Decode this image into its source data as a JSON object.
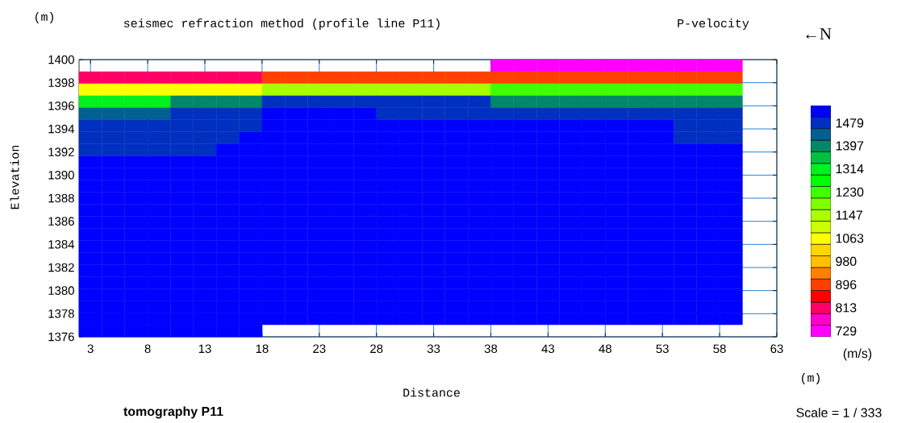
{
  "chart_data": {
    "type": "heatmap",
    "title": "seismec refraction method (profile line P11)",
    "xlabel": "Distance",
    "ylabel": "Elevation",
    "clabel": "(m/s)",
    "annotations": [
      "(m)",
      "P-velocity",
      "←N",
      "(m)",
      "tomography P11",
      "Scale = 1 / 333"
    ],
    "x": [
      3,
      5,
      7,
      9,
      11,
      13,
      15,
      17,
      19,
      21,
      23,
      25,
      27,
      29,
      31,
      33,
      35,
      37,
      39,
      41,
      43,
      45,
      47,
      49,
      51,
      53,
      55,
      57,
      59
    ],
    "xlim": [
      2,
      63
    ],
    "xticks": [
      3,
      8,
      13,
      18,
      23,
      28,
      33,
      38,
      43,
      48,
      53,
      58,
      63
    ],
    "ylim": [
      1376,
      1400
    ],
    "yticks": [
      1376,
      1378,
      1380,
      1382,
      1384,
      1386,
      1388,
      1390,
      1392,
      1394,
      1396,
      1398,
      1400
    ],
    "grid": true,
    "clim": [
      708,
      1542
    ],
    "cticks": [
      729,
      813,
      896,
      980,
      1063,
      1147,
      1230,
      1314,
      1397,
      1479
    ],
    "colors": [
      "#ff00ff",
      "#ff00cc",
      "#ff0066",
      "#ff0000",
      "#ff4000",
      "#ff8000",
      "#ffc000",
      "#ffd700",
      "#ffff00",
      "#ccff00",
      "#a8ff00",
      "#80ff00",
      "#40ff00",
      "#00ff00",
      "#00f020",
      "#00c040",
      "#008868",
      "#006090",
      "#0030c0",
      "#0000ff"
    ],
    "cells": [
      [
        null,
        null,
        null,
        null,
        null,
        null,
        null,
        null,
        null,
        null,
        null,
        null,
        null,
        null,
        null,
        null,
        null,
        null,
        740,
        740,
        740,
        740,
        740,
        740,
        740,
        740,
        740,
        740,
        740
      ],
      [
        813,
        813,
        813,
        813,
        813,
        813,
        813,
        813,
        896,
        896,
        896,
        896,
        896,
        896,
        896,
        896,
        896,
        896,
        896,
        896,
        896,
        896,
        896,
        896,
        896,
        896,
        896,
        896,
        896
      ],
      [
        1063,
        1063,
        1063,
        1063,
        1063,
        1063,
        1063,
        1063,
        1147,
        1147,
        1147,
        1147,
        1147,
        1147,
        1147,
        1147,
        1147,
        1147,
        1230,
        1230,
        1230,
        1230,
        1230,
        1230,
        1230,
        1230,
        1230,
        1230,
        1230
      ],
      [
        1314,
        1314,
        1314,
        1314,
        1397,
        1397,
        1397,
        1397,
        1479,
        1479,
        1479,
        1479,
        1479,
        1479,
        1479,
        1479,
        1479,
        1479,
        1397,
        1397,
        1397,
        1397,
        1397,
        1397,
        1397,
        1397,
        1397,
        1397,
        1397
      ],
      [
        1440,
        1440,
        1440,
        1440,
        1479,
        1479,
        1479,
        1479,
        1520,
        1520,
        1520,
        1520,
        1520,
        1479,
        1479,
        1479,
        1479,
        1479,
        1479,
        1479,
        1479,
        1479,
        1479,
        1479,
        1479,
        1479,
        1479,
        1479,
        1479
      ],
      [
        1479,
        1479,
        1479,
        1479,
        1479,
        1479,
        1479,
        1479,
        1520,
        1520,
        1520,
        1520,
        1520,
        1520,
        1520,
        1520,
        1520,
        1520,
        1520,
        1520,
        1520,
        1520,
        1520,
        1520,
        1520,
        1520,
        1479,
        1479,
        1479
      ],
      [
        1479,
        1479,
        1479,
        1479,
        1479,
        1479,
        1479,
        1520,
        1520,
        1520,
        1520,
        1520,
        1520,
        1520,
        1520,
        1520,
        1520,
        1520,
        1520,
        1520,
        1520,
        1520,
        1520,
        1520,
        1520,
        1520,
        1479,
        1479,
        1479
      ],
      [
        1479,
        1479,
        1479,
        1479,
        1479,
        1479,
        1520,
        1520,
        1520,
        1520,
        1520,
        1520,
        1520,
        1520,
        1520,
        1520,
        1520,
        1520,
        1520,
        1520,
        1520,
        1520,
        1520,
        1520,
        1520,
        1520,
        1520,
        1520,
        1520
      ],
      [
        1520,
        1520,
        1520,
        1520,
        1520,
        1520,
        1520,
        1520,
        1520,
        1520,
        1520,
        1520,
        1520,
        1520,
        1520,
        1520,
        1520,
        1520,
        1520,
        1520,
        1520,
        1520,
        1520,
        1520,
        1520,
        1520,
        1520,
        1520,
        1520
      ],
      [
        1520,
        1520,
        1520,
        1520,
        1520,
        1520,
        1520,
        1520,
        1520,
        1520,
        1520,
        1520,
        1520,
        1520,
        1520,
        1520,
        1520,
        1520,
        1520,
        1520,
        1520,
        1520,
        1520,
        1520,
        1520,
        1520,
        1520,
        1520,
        1520
      ],
      [
        1520,
        1520,
        1520,
        1520,
        1520,
        1520,
        1520,
        1520,
        1520,
        1520,
        1520,
        1520,
        1520,
        1520,
        1520,
        1520,
        1520,
        1520,
        1520,
        1520,
        1520,
        1520,
        1520,
        1520,
        1520,
        1520,
        1520,
        1520,
        1520
      ],
      [
        1520,
        1520,
        1520,
        1520,
        1520,
        1520,
        1520,
        1520,
        1520,
        1520,
        1520,
        1520,
        1520,
        1520,
        1520,
        1520,
        1520,
        1520,
        1520,
        1520,
        1520,
        1520,
        1520,
        1520,
        1520,
        1520,
        1520,
        1520,
        1520
      ],
      [
        1520,
        1520,
        1520,
        1520,
        1520,
        1520,
        1520,
        1520,
        1520,
        1520,
        1520,
        1520,
        1520,
        1520,
        1520,
        1520,
        1520,
        1520,
        1520,
        1520,
        1520,
        1520,
        1520,
        1520,
        1520,
        1520,
        1520,
        1520,
        1520
      ],
      [
        1520,
        1520,
        1520,
        1520,
        1520,
        1520,
        1520,
        1520,
        1520,
        1520,
        1520,
        1520,
        1520,
        1520,
        1520,
        1520,
        1520,
        1520,
        1520,
        1520,
        1520,
        1520,
        1520,
        1520,
        1520,
        1520,
        1520,
        1520,
        1520
      ],
      [
        1520,
        1520,
        1520,
        1520,
        1520,
        1520,
        1520,
        1520,
        1520,
        1520,
        1520,
        1520,
        1520,
        1520,
        1520,
        1520,
        1520,
        1520,
        1520,
        1520,
        1520,
        1520,
        1520,
        1520,
        1520,
        1520,
        1520,
        1520,
        1520
      ],
      [
        1520,
        1520,
        1520,
        1520,
        1520,
        1520,
        1520,
        1520,
        1520,
        1520,
        1520,
        1520,
        1520,
        1520,
        1520,
        1520,
        1520,
        1520,
        1520,
        1520,
        1520,
        1520,
        1520,
        1520,
        1520,
        1520,
        1520,
        1520,
        1520
      ],
      [
        1520,
        1520,
        1520,
        1520,
        1520,
        1520,
        1520,
        1520,
        1520,
        1520,
        1520,
        1520,
        1520,
        1520,
        1520,
        1520,
        1520,
        1520,
        1520,
        1520,
        1520,
        1520,
        1520,
        1520,
        1520,
        1520,
        1520,
        1520,
        1520
      ],
      [
        1520,
        1520,
        1520,
        1520,
        1520,
        1520,
        1520,
        1520,
        1520,
        1520,
        1520,
        1520,
        1520,
        1520,
        1520,
        1520,
        1520,
        1520,
        1520,
        1520,
        1520,
        1520,
        1520,
        1520,
        1520,
        1520,
        1520,
        1520,
        1520
      ],
      [
        1520,
        1520,
        1520,
        1520,
        1520,
        1520,
        1520,
        1520,
        1520,
        1520,
        1520,
        1520,
        1520,
        1520,
        1520,
        1520,
        1520,
        1520,
        1520,
        1520,
        1520,
        1520,
        1520,
        1520,
        1520,
        1520,
        1520,
        1520,
        1520
      ],
      [
        1520,
        1520,
        1520,
        1520,
        1520,
        1520,
        1520,
        1520,
        1520,
        1520,
        1520,
        1520,
        1520,
        1520,
        1520,
        1520,
        1520,
        1520,
        1520,
        1520,
        1520,
        1520,
        1520,
        1520,
        1520,
        1520,
        1520,
        1520,
        1520
      ],
      [
        1520,
        1520,
        1520,
        1520,
        1520,
        1520,
        1520,
        1520,
        1520,
        1520,
        1520,
        1520,
        1520,
        1520,
        1520,
        1520,
        1520,
        1520,
        1520,
        1520,
        1520,
        1520,
        1520,
        1520,
        1520,
        1520,
        1520,
        1520,
        1520
      ],
      [
        1520,
        1520,
        1520,
        1520,
        1520,
        1520,
        1520,
        1520,
        1520,
        1520,
        1520,
        1520,
        1520,
        1520,
        1520,
        1520,
        1520,
        1520,
        1520,
        1520,
        1520,
        1520,
        1520,
        1520,
        1520,
        1520,
        1520,
        1520,
        1520
      ],
      [
        1520,
        1520,
        1520,
        1520,
        1520,
        1520,
        1520,
        1520,
        null,
        null,
        null,
        null,
        null,
        null,
        null,
        null,
        null,
        null,
        null,
        null,
        null,
        null,
        null,
        null,
        null,
        null,
        null,
        null,
        null
      ]
    ]
  }
}
